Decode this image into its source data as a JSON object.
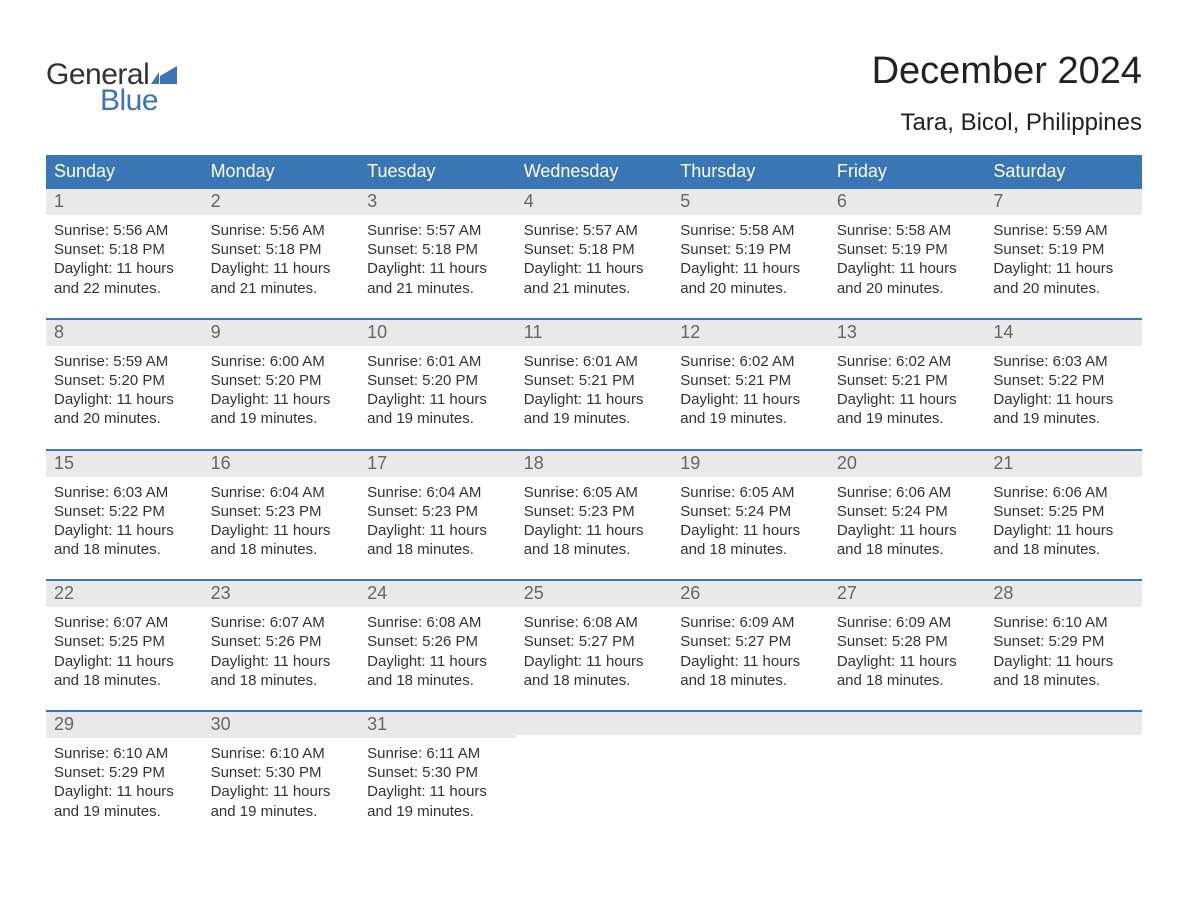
{
  "logo": {
    "word1": "General",
    "word2": "Blue",
    "word1_color": "#333333",
    "word2_color": "#3a75b5",
    "flag_color": "#3a75b5"
  },
  "title": "December 2024",
  "location": "Tara, Bicol, Philippines",
  "colors": {
    "header_bg": "#3a75b5",
    "header_text": "#ffffff",
    "daynum_bg": "#e9e9e9",
    "daynum_text": "#666666",
    "body_text": "#333333",
    "week_divider": "#3a75b5",
    "page_bg": "#ffffff"
  },
  "typography": {
    "title_fontsize": 38,
    "location_fontsize": 24,
    "weekday_fontsize": 18,
    "daynum_fontsize": 18,
    "body_fontsize": 15,
    "logo_fontsize": 30
  },
  "layout": {
    "columns": 7,
    "rows": 5,
    "week_divider_width": 2
  },
  "weekdays": [
    "Sunday",
    "Monday",
    "Tuesday",
    "Wednesday",
    "Thursday",
    "Friday",
    "Saturday"
  ],
  "weeks": [
    [
      {
        "n": "1",
        "sunrise": "5:56 AM",
        "sunset": "5:18 PM",
        "dl1": "Daylight: 11 hours",
        "dl2": "and 22 minutes."
      },
      {
        "n": "2",
        "sunrise": "5:56 AM",
        "sunset": "5:18 PM",
        "dl1": "Daylight: 11 hours",
        "dl2": "and 21 minutes."
      },
      {
        "n": "3",
        "sunrise": "5:57 AM",
        "sunset": "5:18 PM",
        "dl1": "Daylight: 11 hours",
        "dl2": "and 21 minutes."
      },
      {
        "n": "4",
        "sunrise": "5:57 AM",
        "sunset": "5:18 PM",
        "dl1": "Daylight: 11 hours",
        "dl2": "and 21 minutes."
      },
      {
        "n": "5",
        "sunrise": "5:58 AM",
        "sunset": "5:19 PM",
        "dl1": "Daylight: 11 hours",
        "dl2": "and 20 minutes."
      },
      {
        "n": "6",
        "sunrise": "5:58 AM",
        "sunset": "5:19 PM",
        "dl1": "Daylight: 11 hours",
        "dl2": "and 20 minutes."
      },
      {
        "n": "7",
        "sunrise": "5:59 AM",
        "sunset": "5:19 PM",
        "dl1": "Daylight: 11 hours",
        "dl2": "and 20 minutes."
      }
    ],
    [
      {
        "n": "8",
        "sunrise": "5:59 AM",
        "sunset": "5:20 PM",
        "dl1": "Daylight: 11 hours",
        "dl2": "and 20 minutes."
      },
      {
        "n": "9",
        "sunrise": "6:00 AM",
        "sunset": "5:20 PM",
        "dl1": "Daylight: 11 hours",
        "dl2": "and 19 minutes."
      },
      {
        "n": "10",
        "sunrise": "6:01 AM",
        "sunset": "5:20 PM",
        "dl1": "Daylight: 11 hours",
        "dl2": "and 19 minutes."
      },
      {
        "n": "11",
        "sunrise": "6:01 AM",
        "sunset": "5:21 PM",
        "dl1": "Daylight: 11 hours",
        "dl2": "and 19 minutes."
      },
      {
        "n": "12",
        "sunrise": "6:02 AM",
        "sunset": "5:21 PM",
        "dl1": "Daylight: 11 hours",
        "dl2": "and 19 minutes."
      },
      {
        "n": "13",
        "sunrise": "6:02 AM",
        "sunset": "5:21 PM",
        "dl1": "Daylight: 11 hours",
        "dl2": "and 19 minutes."
      },
      {
        "n": "14",
        "sunrise": "6:03 AM",
        "sunset": "5:22 PM",
        "dl1": "Daylight: 11 hours",
        "dl2": "and 19 minutes."
      }
    ],
    [
      {
        "n": "15",
        "sunrise": "6:03 AM",
        "sunset": "5:22 PM",
        "dl1": "Daylight: 11 hours",
        "dl2": "and 18 minutes."
      },
      {
        "n": "16",
        "sunrise": "6:04 AM",
        "sunset": "5:23 PM",
        "dl1": "Daylight: 11 hours",
        "dl2": "and 18 minutes."
      },
      {
        "n": "17",
        "sunrise": "6:04 AM",
        "sunset": "5:23 PM",
        "dl1": "Daylight: 11 hours",
        "dl2": "and 18 minutes."
      },
      {
        "n": "18",
        "sunrise": "6:05 AM",
        "sunset": "5:23 PM",
        "dl1": "Daylight: 11 hours",
        "dl2": "and 18 minutes."
      },
      {
        "n": "19",
        "sunrise": "6:05 AM",
        "sunset": "5:24 PM",
        "dl1": "Daylight: 11 hours",
        "dl2": "and 18 minutes."
      },
      {
        "n": "20",
        "sunrise": "6:06 AM",
        "sunset": "5:24 PM",
        "dl1": "Daylight: 11 hours",
        "dl2": "and 18 minutes."
      },
      {
        "n": "21",
        "sunrise": "6:06 AM",
        "sunset": "5:25 PM",
        "dl1": "Daylight: 11 hours",
        "dl2": "and 18 minutes."
      }
    ],
    [
      {
        "n": "22",
        "sunrise": "6:07 AM",
        "sunset": "5:25 PM",
        "dl1": "Daylight: 11 hours",
        "dl2": "and 18 minutes."
      },
      {
        "n": "23",
        "sunrise": "6:07 AM",
        "sunset": "5:26 PM",
        "dl1": "Daylight: 11 hours",
        "dl2": "and 18 minutes."
      },
      {
        "n": "24",
        "sunrise": "6:08 AM",
        "sunset": "5:26 PM",
        "dl1": "Daylight: 11 hours",
        "dl2": "and 18 minutes."
      },
      {
        "n": "25",
        "sunrise": "6:08 AM",
        "sunset": "5:27 PM",
        "dl1": "Daylight: 11 hours",
        "dl2": "and 18 minutes."
      },
      {
        "n": "26",
        "sunrise": "6:09 AM",
        "sunset": "5:27 PM",
        "dl1": "Daylight: 11 hours",
        "dl2": "and 18 minutes."
      },
      {
        "n": "27",
        "sunrise": "6:09 AM",
        "sunset": "5:28 PM",
        "dl1": "Daylight: 11 hours",
        "dl2": "and 18 minutes."
      },
      {
        "n": "28",
        "sunrise": "6:10 AM",
        "sunset": "5:29 PM",
        "dl1": "Daylight: 11 hours",
        "dl2": "and 18 minutes."
      }
    ],
    [
      {
        "n": "29",
        "sunrise": "6:10 AM",
        "sunset": "5:29 PM",
        "dl1": "Daylight: 11 hours",
        "dl2": "and 19 minutes."
      },
      {
        "n": "30",
        "sunrise": "6:10 AM",
        "sunset": "5:30 PM",
        "dl1": "Daylight: 11 hours",
        "dl2": "and 19 minutes."
      },
      {
        "n": "31",
        "sunrise": "6:11 AM",
        "sunset": "5:30 PM",
        "dl1": "Daylight: 11 hours",
        "dl2": "and 19 minutes."
      },
      null,
      null,
      null,
      null
    ]
  ],
  "labels": {
    "sunrise_prefix": "Sunrise: ",
    "sunset_prefix": "Sunset: "
  }
}
